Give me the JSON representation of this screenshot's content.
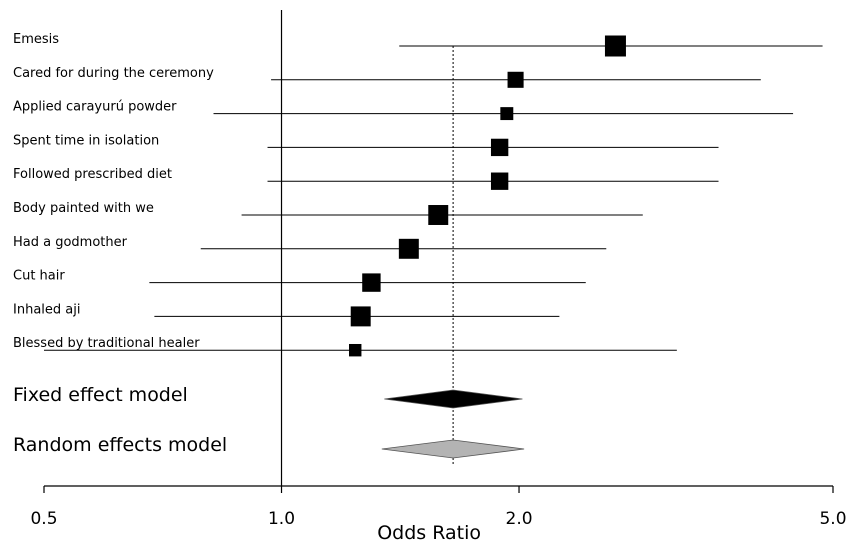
{
  "chart_data": {
    "type": "forest",
    "xlabel": "Odds Ratio",
    "x_scale": "log",
    "xlim": [
      0.5,
      5.0
    ],
    "xticks": [
      0.5,
      1.0,
      2.0,
      5.0
    ],
    "xtick_labels": [
      "0.5",
      "1.0",
      "2.0",
      "5.0"
    ],
    "reference_line": 1.0,
    "summary_line": 1.65,
    "studies": [
      {
        "label": "Emesis",
        "or": 2.65,
        "lower": 1.41,
        "upper": 4.85,
        "weight": 1.0
      },
      {
        "label": "Cared for during the ceremony",
        "or": 1.98,
        "lower": 0.97,
        "upper": 4.05,
        "weight": 0.62
      },
      {
        "label": "Applied carayurú powder",
        "or": 1.93,
        "lower": 0.82,
        "upper": 4.45,
        "weight": 0.38
      },
      {
        "label": "Spent time in isolation",
        "or": 1.89,
        "lower": 0.96,
        "upper": 3.58,
        "weight": 0.72
      },
      {
        "label": "Followed prescribed diet",
        "or": 1.89,
        "lower": 0.96,
        "upper": 3.58,
        "weight": 0.72
      },
      {
        "label": "Body painted with we",
        "or": 1.58,
        "lower": 0.89,
        "upper": 2.87,
        "weight": 0.92
      },
      {
        "label": "Had a godmother",
        "or": 1.45,
        "lower": 0.79,
        "upper": 2.58,
        "weight": 0.92
      },
      {
        "label": "Cut hair",
        "or": 1.3,
        "lower": 0.68,
        "upper": 2.43,
        "weight": 0.8
      },
      {
        "label": "Inhaled aji",
        "or": 1.26,
        "lower": 0.69,
        "upper": 2.25,
        "weight": 0.92
      },
      {
        "label": "Blessed by traditional healer",
        "or": 1.24,
        "lower": 0.5,
        "upper": 3.17,
        "weight": 0.34
      }
    ],
    "models": [
      {
        "label": "Fixed effect model",
        "or": 1.65,
        "lower": 1.35,
        "upper": 2.02,
        "fill": "#000000"
      },
      {
        "label": "Random effects model",
        "or": 1.65,
        "lower": 1.34,
        "upper": 2.03,
        "fill": "#b3b3b3"
      }
    ]
  }
}
